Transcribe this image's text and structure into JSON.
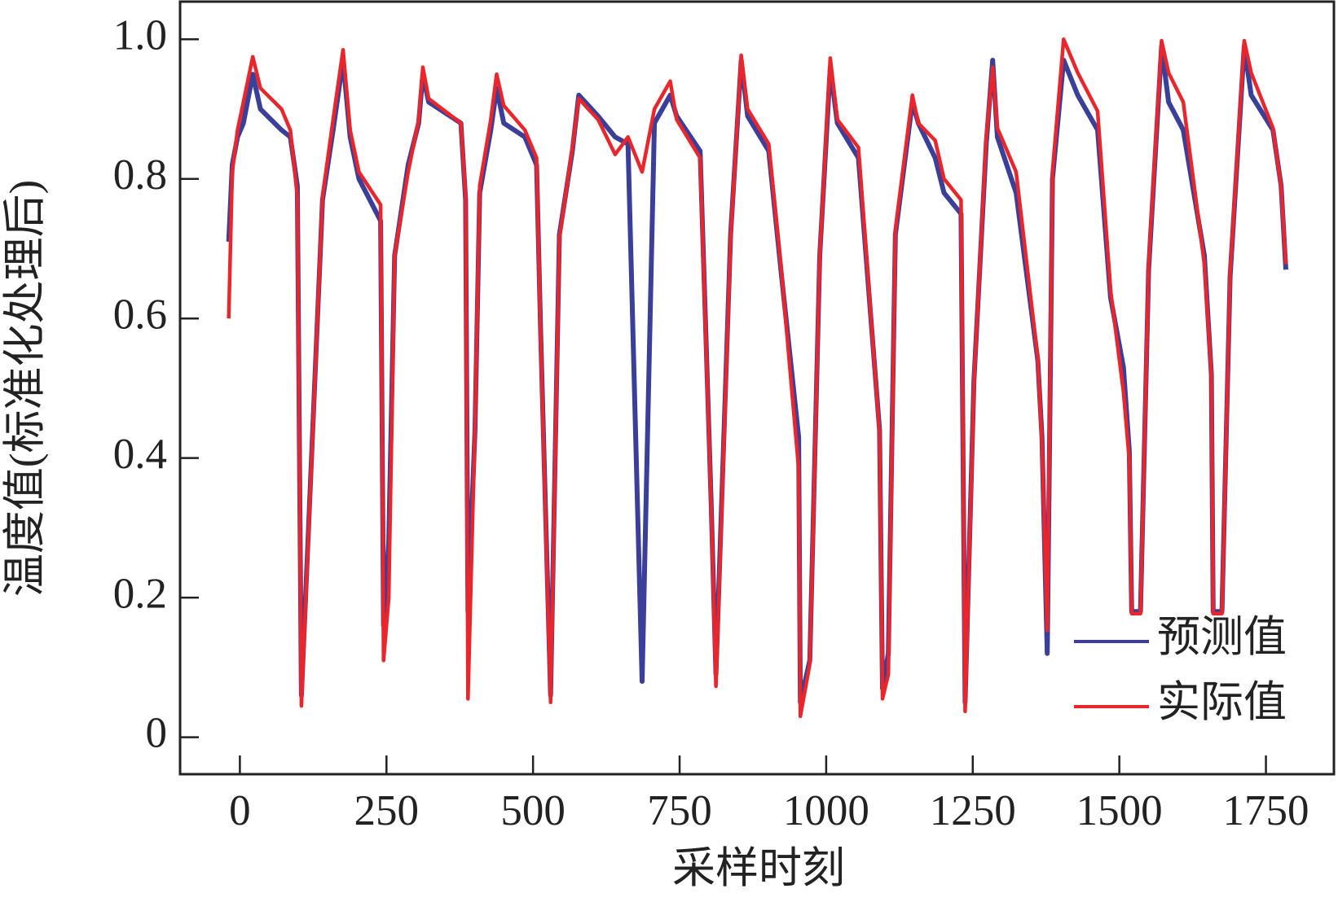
{
  "chart_data": {
    "type": "line",
    "xlabel": "采样时刻",
    "ylabel": "温度值(标准化处理后)",
    "xlim": [
      -102,
      1866
    ],
    "ylim": [
      -0.053,
      1.054
    ],
    "xticks": [
      0,
      250,
      500,
      750,
      1000,
      1250,
      1500,
      1750
    ],
    "yticks": [
      0,
      0.2,
      0.4,
      0.6,
      0.8,
      {
        "value": 1,
        "label": "1.0"
      }
    ],
    "legend": "lower right",
    "series": [
      {
        "name": "预测值",
        "color": "#3a3f9a",
        "x": [
          -19,
          -13,
          -4,
          6,
          22,
          35,
          71,
          86,
          98,
          105,
          141,
          159,
          176,
          188,
          203,
          240,
          245,
          254,
          264,
          287,
          305,
          312,
          322,
          377,
          385,
          389,
          401,
          409,
          428,
          438,
          450,
          486,
          506,
          513,
          530,
          545,
          567,
          578,
          611,
          640,
          662,
          686,
          707,
          734,
          745,
          785,
          804,
          812,
          837,
          855,
          866,
          902,
          924,
          953,
          956,
          972,
          989,
          1007,
          1019,
          1055,
          1091,
          1096,
          1106,
          1118,
          1147,
          1157,
          1186,
          1201,
          1230,
          1237,
          1252,
          1273,
          1284,
          1292,
          1324,
          1361,
          1368,
          1377,
          1386,
          1405,
          1429,
          1463,
          1485,
          1507,
          1517,
          1521,
          1536,
          1550,
          1572,
          1584,
          1609,
          1645,
          1657,
          1660,
          1675,
          1689,
          1713,
          1725,
          1762,
          1776,
          1784
        ],
        "values": [
          0.71,
          0.82,
          0.86,
          0.88,
          0.95,
          0.9,
          0.87,
          0.86,
          0.79,
          0.06,
          0.77,
          0.87,
          0.97,
          0.86,
          0.8,
          0.74,
          0.16,
          0.28,
          0.69,
          0.82,
          0.88,
          0.95,
          0.91,
          0.88,
          0.77,
          0.18,
          0.44,
          0.78,
          0.87,
          0.93,
          0.88,
          0.86,
          0.82,
          0.58,
          0.06,
          0.72,
          0.84,
          0.92,
          0.89,
          0.86,
          0.85,
          0.08,
          0.88,
          0.92,
          0.89,
          0.84,
          0.33,
          0.09,
          0.72,
          0.97,
          0.89,
          0.84,
          0.66,
          0.43,
          0.05,
          0.11,
          0.69,
          0.96,
          0.88,
          0.83,
          0.44,
          0.07,
          0.12,
          0.72,
          0.91,
          0.88,
          0.83,
          0.78,
          0.75,
          0.05,
          0.51,
          0.85,
          0.97,
          0.86,
          0.78,
          0.54,
          0.43,
          0.12,
          0.8,
          0.97,
          0.92,
          0.87,
          0.63,
          0.53,
          0.41,
          0.18,
          0.18,
          0.67,
          0.99,
          0.91,
          0.87,
          0.69,
          0.52,
          0.18,
          0.18,
          0.66,
          0.99,
          0.92,
          0.87,
          0.79,
          0.67
        ]
      },
      {
        "name": "实际值",
        "color": "#e8262b",
        "x": [
          -19,
          -13,
          -4,
          6,
          22,
          35,
          71,
          86,
          98,
          105,
          141,
          159,
          176,
          188,
          203,
          240,
          245,
          254,
          264,
          287,
          305,
          312,
          322,
          377,
          385,
          389,
          401,
          409,
          428,
          438,
          450,
          486,
          506,
          513,
          530,
          545,
          567,
          578,
          611,
          640,
          662,
          686,
          707,
          734,
          745,
          785,
          804,
          812,
          837,
          855,
          866,
          902,
          924,
          953,
          956,
          972,
          989,
          1007,
          1019,
          1055,
          1091,
          1096,
          1106,
          1118,
          1147,
          1157,
          1186,
          1201,
          1230,
          1237,
          1252,
          1273,
          1284,
          1292,
          1324,
          1361,
          1368,
          1377,
          1386,
          1405,
          1429,
          1463,
          1485,
          1507,
          1517,
          1521,
          1536,
          1550,
          1572,
          1584,
          1609,
          1645,
          1657,
          1660,
          1675,
          1689,
          1713,
          1725,
          1762,
          1776,
          1784
        ],
        "values": [
          0.6,
          0.81,
          0.87,
          0.91,
          0.975,
          0.93,
          0.9,
          0.87,
          0.775,
          0.045,
          0.775,
          0.885,
          0.985,
          0.87,
          0.81,
          0.763,
          0.11,
          0.2,
          0.69,
          0.81,
          0.885,
          0.96,
          0.915,
          0.88,
          0.775,
          0.055,
          0.445,
          0.79,
          0.885,
          0.95,
          0.905,
          0.87,
          0.83,
          0.57,
          0.05,
          0.715,
          0.845,
          0.915,
          0.885,
          0.835,
          0.86,
          0.81,
          0.9,
          0.94,
          0.885,
          0.83,
          0.325,
          0.073,
          0.715,
          0.977,
          0.9,
          0.85,
          0.665,
          0.385,
          0.03,
          0.105,
          0.69,
          0.973,
          0.885,
          0.845,
          0.435,
          0.055,
          0.09,
          0.727,
          0.92,
          0.88,
          0.855,
          0.8,
          0.77,
          0.037,
          0.507,
          0.86,
          0.96,
          0.873,
          0.81,
          0.543,
          0.42,
          0.153,
          0.81,
          1.0,
          0.952,
          0.897,
          0.64,
          0.495,
          0.397,
          0.177,
          0.177,
          0.678,
          0.998,
          0.952,
          0.91,
          0.678,
          0.519,
          0.177,
          0.177,
          0.665,
          0.998,
          0.952,
          0.873,
          0.788,
          0.678
        ]
      }
    ]
  }
}
